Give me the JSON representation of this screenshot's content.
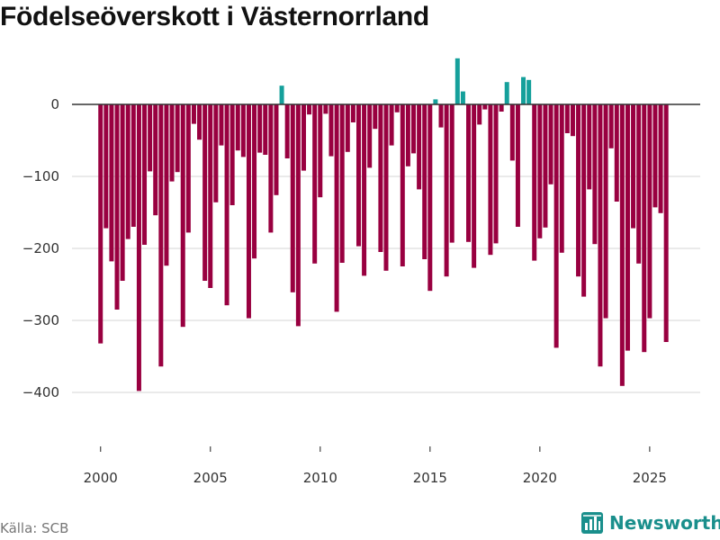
{
  "title": "Födelseöverskott i Västernorrland",
  "source": "Källa: SCB",
  "brand": {
    "name": "Newsworthy",
    "icon": "newsworthy-logo-icon"
  },
  "colors": {
    "negative": "#990040",
    "positive": "#15a09b",
    "grid": "#dddddd",
    "zero_line": "#333333"
  },
  "chart_data": {
    "type": "bar",
    "title": "Födelseöverskott i Västernorrland",
    "xlabel": "",
    "ylabel": "",
    "ylim": [
      -465,
      70
    ],
    "xlim": [
      1998.7,
      2027.3
    ],
    "yticks": [
      0,
      -100,
      -200,
      -300,
      -400
    ],
    "ytick_labels": [
      "0",
      "−100",
      "−200",
      "−300",
      "−400"
    ],
    "xticks": [
      2000,
      2005,
      2010,
      2015,
      2020,
      2025
    ],
    "xtick_labels": [
      "2000",
      "2005",
      "2010",
      "2015",
      "2020",
      "2025"
    ],
    "grid": true,
    "frequency": "quarterly",
    "start_period": "2000 Q1",
    "values": [
      -332,
      -172,
      -218,
      -285,
      -245,
      -187,
      -170,
      -398,
      -195,
      -93,
      -154,
      -364,
      -224,
      -107,
      -94,
      -309,
      -178,
      -27,
      -49,
      -245,
      -255,
      -136,
      -57,
      -279,
      -140,
      -64,
      -73,
      -297,
      -214,
      -67,
      -70,
      -178,
      -126,
      26,
      -75,
      -261,
      -308,
      -92,
      -14,
      -221,
      -129,
      -13,
      -72,
      -288,
      -220,
      -66,
      -25,
      -197,
      -238,
      -88,
      -34,
      -205,
      -231,
      -57,
      -11,
      -225,
      -86,
      -68,
      -118,
      -215,
      -259,
      7,
      -32,
      -239,
      -192,
      64,
      18,
      -191,
      -227,
      -28,
      -7,
      -209,
      -193,
      -10,
      31,
      -78,
      -170,
      38,
      34,
      -217,
      -186,
      -171,
      -111,
      -338,
      -206,
      -40,
      -44,
      -239,
      -267,
      -118,
      -194,
      -364,
      -297,
      -61,
      -135,
      -391,
      -342,
      -172,
      -221,
      -344,
      -297,
      -143,
      -151,
      -330
    ]
  }
}
